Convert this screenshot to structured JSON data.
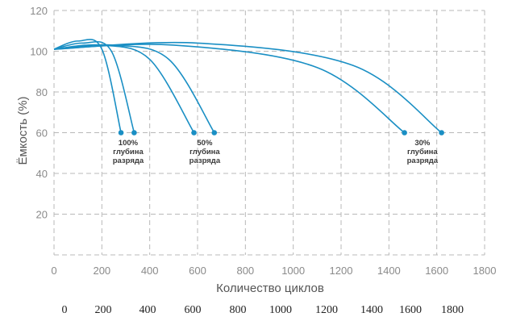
{
  "chart_data": {
    "type": "line",
    "xlabel": "Количество циклов",
    "ylabel": "Ёмкость (%)",
    "xlim": [
      0,
      1800
    ],
    "ylim": [
      0,
      120
    ],
    "x_ticks": [
      "0",
      "200",
      "400",
      "600",
      "800",
      "1000",
      "1200",
      "1400",
      "1600",
      "1800"
    ],
    "y_ticks": [
      "20",
      "40",
      "60",
      "80",
      "100",
      "120"
    ],
    "bottom_ticks": [
      "0",
      "200",
      "400",
      "600",
      "800",
      "1000",
      "1200",
      "1400",
      "1600",
      "1800"
    ],
    "grid": true,
    "line_color": "#1a8fc4",
    "series": [
      {
        "values": [
          [
            0,
            101
          ],
          [
            100,
            105
          ],
          [
            200,
            101
          ],
          [
            280,
            60
          ]
        ]
      },
      {
        "values": [
          [
            0,
            101
          ],
          [
            120,
            104
          ],
          [
            240,
            100
          ],
          [
            335,
            60
          ]
        ]
      },
      {
        "values": [
          [
            0,
            101
          ],
          [
            200,
            103
          ],
          [
            400,
            96
          ],
          [
            585,
            60
          ]
        ]
      },
      {
        "values": [
          [
            0,
            101
          ],
          [
            250,
            103
          ],
          [
            480,
            96
          ],
          [
            670,
            60
          ]
        ]
      },
      {
        "values": [
          [
            0,
            101
          ],
          [
            500,
            103
          ],
          [
            1100,
            92
          ],
          [
            1465,
            60
          ]
        ]
      },
      {
        "values": [
          [
            0,
            101
          ],
          [
            600,
            104
          ],
          [
            1250,
            93
          ],
          [
            1620,
            60
          ]
        ]
      }
    ],
    "annotations": [
      {
        "lines": [
          "100%",
          "глубина",
          "разряда"
        ],
        "x": 310
      },
      {
        "lines": [
          "50%",
          "глубина",
          "разряда"
        ],
        "x": 630
      },
      {
        "lines": [
          "30%",
          "глубина",
          "разряда"
        ],
        "x": 1540
      }
    ]
  }
}
